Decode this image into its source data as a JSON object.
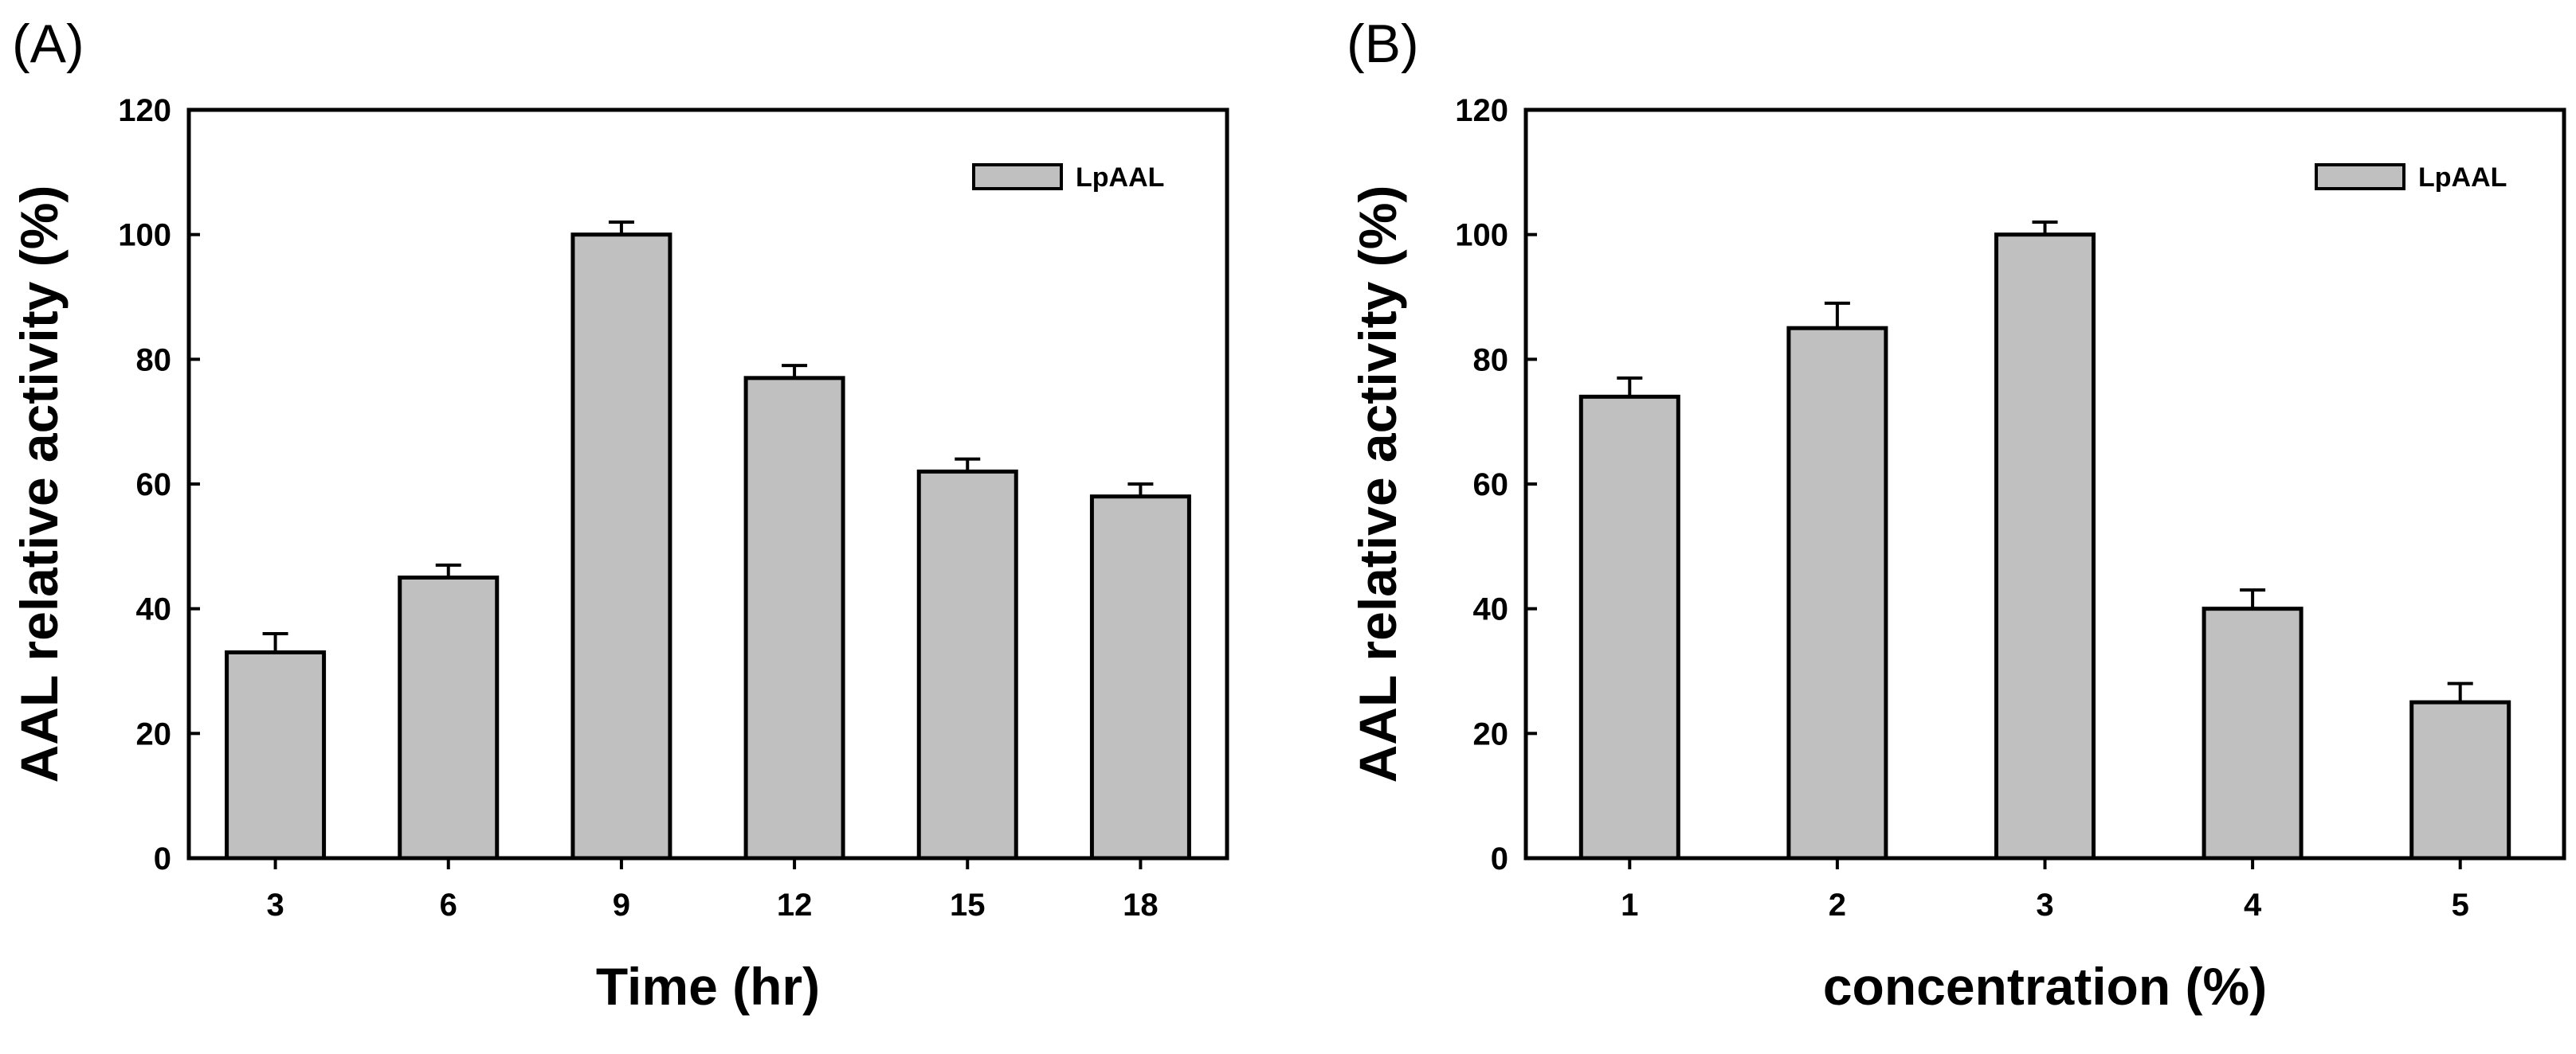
{
  "chart_data": [
    {
      "type": "bar",
      "panel_label": "(A)",
      "title": "",
      "xlabel": "Time (hr)",
      "ylabel": "AAL relative activity (%)",
      "categories": [
        "3",
        "6",
        "9",
        "12",
        "15",
        "18"
      ],
      "series": [
        {
          "name": "LpAAL",
          "values": [
            33,
            45,
            100,
            77,
            62,
            58
          ],
          "errors": [
            3,
            2,
            2,
            2,
            2,
            2
          ]
        }
      ],
      "ylim": [
        0,
        120
      ],
      "yticks": [
        0,
        20,
        40,
        60,
        80,
        100,
        120
      ],
      "legend": {
        "position": "top-right",
        "entries": [
          "LpAAL"
        ]
      },
      "bar_color": "#c0c0c0",
      "grid": false
    },
    {
      "type": "bar",
      "panel_label": "(B)",
      "title": "",
      "xlabel": "concentration (%)",
      "ylabel": "AAL relative activity (%)",
      "categories": [
        "1",
        "2",
        "3",
        "4",
        "5"
      ],
      "series": [
        {
          "name": "LpAAL",
          "values": [
            74,
            85,
            100,
            40,
            25
          ],
          "errors": [
            3,
            4,
            2,
            3,
            3
          ]
        }
      ],
      "ylim": [
        0,
        120
      ],
      "yticks": [
        0,
        20,
        40,
        60,
        80,
        100,
        120
      ],
      "legend": {
        "position": "top-right",
        "entries": [
          "LpAAL"
        ]
      },
      "bar_color": "#c0c0c0",
      "grid": false
    }
  ]
}
